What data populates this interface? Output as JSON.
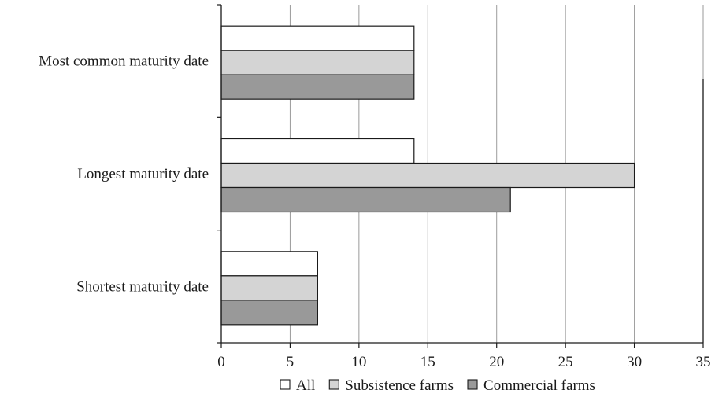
{
  "chart_data": {
    "type": "bar",
    "orientation": "horizontal",
    "categories": [
      "Most common maturity date",
      "Longest maturity date",
      "Shortest maturity date"
    ],
    "series": [
      {
        "name": "All",
        "values": [
          14,
          14,
          7
        ],
        "color": "#ffffff"
      },
      {
        "name": "Subsistence farms",
        "values": [
          14,
          30,
          7
        ],
        "color": "#d4d4d4"
      },
      {
        "name": "Commercial farms",
        "values": [
          14,
          21,
          7
        ],
        "color": "#999999"
      }
    ],
    "xlim": [
      0,
      35
    ],
    "xticks": [
      0,
      5,
      10,
      15,
      20,
      25,
      30,
      35
    ],
    "grid": "vertical",
    "legend_position": "bottom",
    "title": "",
    "xlabel": "",
    "ylabel": ""
  }
}
